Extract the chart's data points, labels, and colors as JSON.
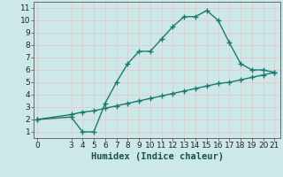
{
  "title": "",
  "xlabel": "Humidex (Indice chaleur)",
  "ylabel": "",
  "bg_color": "#cce8e8",
  "grid_color": "#e8c8c8",
  "line_color": "#1a7a6e",
  "line1_x": [
    0,
    3,
    4,
    5,
    6,
    7,
    8,
    9,
    10,
    11,
    12,
    13,
    14,
    15,
    16,
    17,
    18,
    19,
    20,
    21
  ],
  "line1_y": [
    2.0,
    2.2,
    1.0,
    1.0,
    3.3,
    5.0,
    6.5,
    7.5,
    7.5,
    8.5,
    9.5,
    10.3,
    10.3,
    10.8,
    10.0,
    8.2,
    6.5,
    6.0,
    6.0,
    5.8
  ],
  "line2_x": [
    0,
    3,
    4,
    5,
    6,
    7,
    8,
    9,
    10,
    11,
    12,
    13,
    14,
    15,
    16,
    17,
    18,
    19,
    20,
    21
  ],
  "line2_y": [
    2.0,
    2.4,
    2.6,
    2.7,
    2.9,
    3.1,
    3.3,
    3.5,
    3.7,
    3.9,
    4.1,
    4.3,
    4.5,
    4.7,
    4.9,
    5.0,
    5.2,
    5.4,
    5.6,
    5.8
  ],
  "xlim": [
    -0.3,
    21.5
  ],
  "ylim": [
    0.5,
    11.5
  ],
  "xticks": [
    0,
    3,
    4,
    5,
    6,
    7,
    8,
    9,
    10,
    11,
    12,
    13,
    14,
    15,
    16,
    17,
    18,
    19,
    20,
    21
  ],
  "yticks": [
    1,
    2,
    3,
    4,
    5,
    6,
    7,
    8,
    9,
    10,
    11
  ],
  "marker": "+",
  "markersize": 4,
  "linewidth": 1.0,
  "xlabel_fontsize": 7.5,
  "tick_fontsize": 6.5
}
